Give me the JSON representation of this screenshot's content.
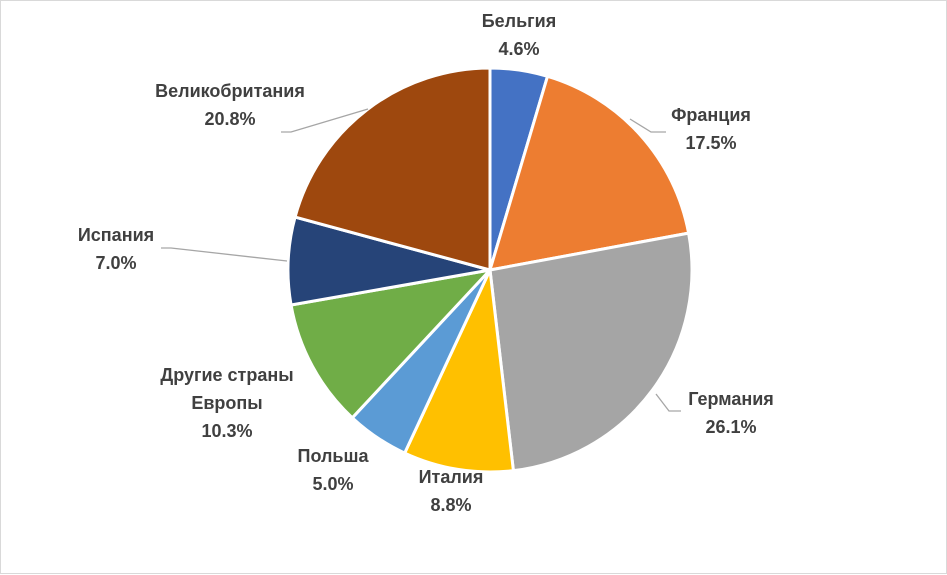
{
  "chart_data": {
    "type": "pie",
    "title": "",
    "slices": [
      {
        "label": "Бельгия",
        "value": 4.6,
        "display": "4.6%",
        "color": "#4472C4"
      },
      {
        "label": "Франция",
        "value": 17.5,
        "display": "17.5%",
        "color": "#ED7D31"
      },
      {
        "label": "Германия",
        "value": 26.1,
        "display": "26.1%",
        "color": "#A5A5A5"
      },
      {
        "label": "Италия",
        "value": 8.8,
        "display": "8.8%",
        "color": "#FFC000"
      },
      {
        "label": "Польша",
        "value": 5.0,
        "display": "5.0%",
        "color": "#5B9BD5"
      },
      {
        "label": "Другие страны Европы",
        "label_lines": [
          "Другие страны",
          "Европы"
        ],
        "value": 10.3,
        "display": "10.3%",
        "color": "#70AD47"
      },
      {
        "label": "Испания",
        "value": 7.0,
        "display": "7.0%",
        "color": "#264478"
      },
      {
        "label": "Великобритания",
        "value": 20.8,
        "display": "20.8%",
        "color": "#9E480E"
      }
    ]
  }
}
